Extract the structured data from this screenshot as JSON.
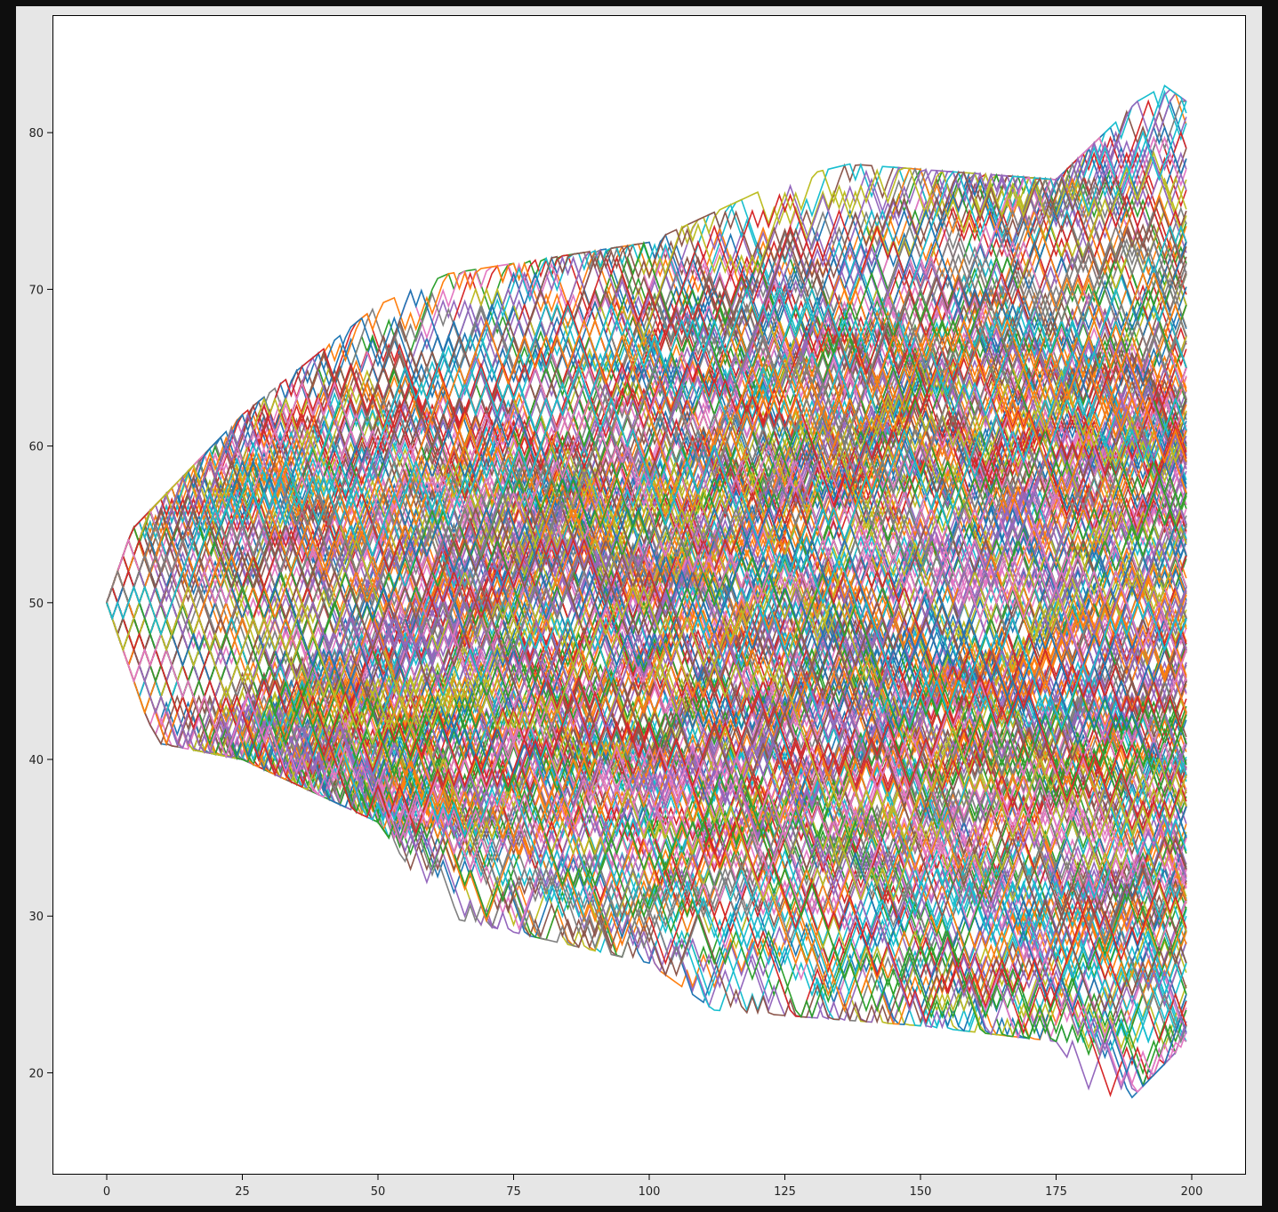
{
  "chart_data": {
    "type": "line",
    "title": "",
    "xlabel": "",
    "ylabel": "",
    "xlim": [
      -10,
      210
    ],
    "ylim": [
      13.5,
      87.5
    ],
    "x_ticks": [
      0,
      25,
      50,
      75,
      100,
      125,
      150,
      175,
      200
    ],
    "x_tick_labels": [
      "0",
      "25",
      "50",
      "75",
      "100",
      "125",
      "150",
      "175",
      "200"
    ],
    "y_ticks": [
      20,
      30,
      40,
      50,
      60,
      70,
      80
    ],
    "y_tick_labels": [
      "20",
      "30",
      "40",
      "50",
      "60",
      "70",
      "80"
    ],
    "grid": false,
    "legend": "none",
    "num_series": 1000,
    "steps": 200,
    "start_value": 50,
    "step_size": 1,
    "envelope_max": [
      [
        0,
        53
      ],
      [
        25,
        62
      ],
      [
        50,
        69
      ],
      [
        63,
        71
      ],
      [
        100,
        73
      ],
      [
        125,
        77
      ],
      [
        137,
        78
      ],
      [
        175,
        77
      ],
      [
        190,
        82
      ],
      [
        195,
        83
      ],
      [
        199,
        82
      ]
    ],
    "envelope_min": [
      [
        0,
        47
      ],
      [
        10,
        41
      ],
      [
        25,
        40
      ],
      [
        50,
        36
      ],
      [
        62,
        30
      ],
      [
        100,
        27
      ],
      [
        112,
        24
      ],
      [
        150,
        23
      ],
      [
        175,
        22
      ],
      [
        185,
        17
      ],
      [
        199,
        22
      ]
    ],
    "series_colors": [
      "#1f77b4",
      "#ff7f0e",
      "#2ca02c",
      "#d62728",
      "#9467bd",
      "#8c564b",
      "#e377c2",
      "#7f7f7f",
      "#bcbd22",
      "#17becf"
    ],
    "background_color": "#e6e6e6",
    "plot_area_color": "#ffffff"
  }
}
